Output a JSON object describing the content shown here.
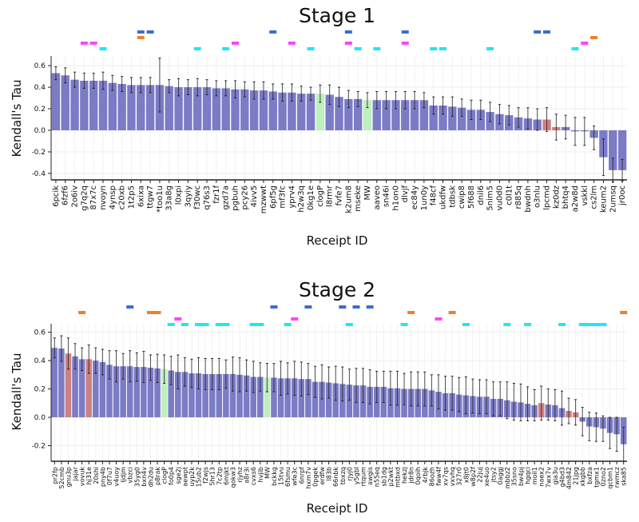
{
  "colors": {
    "bar": "#7b7bc6",
    "bar_green": "#bdf0bd",
    "bar_red": "#cd8080",
    "error": "#222222",
    "marker_rows": [
      "#3b6fc8",
      "#f07f2c",
      "#ff44ff",
      "#22e6f2"
    ]
  },
  "chart_data": [
    {
      "type": "bar",
      "title": "Stage 1",
      "xlabel": "Receipt ID",
      "ylabel": "Kendall's Tau",
      "ylim": [
        -0.46,
        0.69
      ],
      "yticks": [
        -0.4,
        -0.2,
        0.0,
        0.2,
        0.4,
        0.6
      ],
      "ytick_labels": [
        "-0.4",
        "-0.2",
        "0.0",
        "0.2",
        "0.4",
        "0.6"
      ],
      "grid": true,
      "categories": [
        "6pcik",
        "6fzf6",
        "2o6iv",
        "g7q2q",
        "87x7c",
        "nvoyn",
        "4ynsp",
        "c20xb",
        "1t2p5",
        "6xixa",
        "ttgw7",
        "*too1u",
        "33a8g",
        "l0xpi",
        "3qyiy",
        "f30wc",
        "q76s3",
        "fzr1f",
        "gzd7a",
        "pgbuh",
        "pcy26",
        "4ivv5",
        "mzwwt",
        "6pf5g",
        "mf3fc",
        "yprv4",
        "h2w3q",
        "0kg1e",
        "clogP",
        "l8rmr",
        "fvfe7",
        "k2um8",
        "mseke",
        "MW",
        "aaveo",
        "sn46i",
        "h1on0",
        "dlvjf",
        "ec84y",
        "1un0y",
        "f48cf",
        "ukdfw",
        "tdbsk",
        "cwip8",
        "5f688",
        "dnil6",
        "5nim5",
        "vu0d0",
        "c0l1t",
        "r885q",
        "bwdnh",
        "o3nlu",
        "lpcmd",
        "kz0dz",
        "bhtq4",
        "a2w8d",
        "vskkl",
        "cs2lm",
        "keum2",
        "2umsq",
        "jr0oc"
      ],
      "values": [
        0.53,
        0.51,
        0.47,
        0.46,
        0.46,
        0.46,
        0.44,
        0.43,
        0.42,
        0.42,
        0.42,
        0.42,
        0.41,
        0.4,
        0.4,
        0.4,
        0.4,
        0.39,
        0.39,
        0.38,
        0.38,
        0.37,
        0.37,
        0.36,
        0.35,
        0.35,
        0.34,
        0.34,
        0.34,
        0.33,
        0.31,
        0.29,
        0.29,
        0.28,
        0.28,
        0.28,
        0.28,
        0.28,
        0.28,
        0.28,
        0.23,
        0.23,
        0.22,
        0.21,
        0.19,
        0.19,
        0.17,
        0.15,
        0.14,
        0.12,
        0.11,
        0.1,
        0.1,
        0.03,
        0.03,
        -0.01,
        -0.01,
        -0.07,
        -0.25,
        -0.37,
        -0.37
      ],
      "errors": [
        0.06,
        0.07,
        0.07,
        0.07,
        0.07,
        0.08,
        0.07,
        0.07,
        0.07,
        0.07,
        0.07,
        0.25,
        0.06,
        0.08,
        0.07,
        0.08,
        0.07,
        0.07,
        0.07,
        0.08,
        0.07,
        0.08,
        0.08,
        0.07,
        0.08,
        0.08,
        0.07,
        0.06,
        0.08,
        0.09,
        0.09,
        0.08,
        0.07,
        0.07,
        0.08,
        0.08,
        0.08,
        0.08,
        0.08,
        0.07,
        0.08,
        0.08,
        0.09,
        0.08,
        0.09,
        0.09,
        0.09,
        0.09,
        0.09,
        0.09,
        0.1,
        0.1,
        0.11,
        0.12,
        0.11,
        0.13,
        0.13,
        0.11,
        0.17,
        0.11,
        0.1
      ],
      "highlight_green": [
        28,
        33
      ],
      "highlight_red": [
        52,
        53
      ],
      "markers": [
        [
          9,
          10,
          23,
          31,
          37,
          51,
          52
        ],
        [
          9,
          57
        ],
        [
          3,
          4,
          19,
          25,
          31,
          37,
          56
        ],
        [
          5,
          15,
          18,
          27,
          32,
          34,
          40,
          41,
          46,
          55
        ]
      ]
    },
    {
      "type": "bar",
      "title": "Stage 2",
      "xlabel": "Receipt ID",
      "ylabel": "Kendall's Tau",
      "ylim": [
        -0.31,
        0.66
      ],
      "yticks": [
        -0.2,
        0.0,
        0.2,
        0.4,
        0.6
      ],
      "ytick_labels": [
        "-0.2",
        "0.0",
        "0.2",
        "0.4",
        "0.6"
      ],
      "grid": true,
      "categories": [
        "pr2fp",
        "52cmb",
        "gnu3p",
        "jajar",
        "vovuk",
        "hj31e",
        "20shi",
        "pny4b",
        "0f7u7",
        "v4uoy",
        "ljdjm",
        "vbzci",
        "35yg0",
        "bxn4v",
        "dh2du",
        "p8rak",
        "clogP",
        "fo0p4",
        "sge2j",
        "aewpt",
        "uyp2k",
        "15ub2",
        "f2wjs",
        "5hr13",
        "7c2tp",
        "6mjkt",
        "qokw3",
        "rjyhz",
        "a8r3i",
        "cvxs6",
        "hvjib",
        "MW",
        "bckkg",
        "15tvu",
        "6fsmu",
        "wfe3c",
        "6nrpf",
        "hxm7v",
        "0pgek",
        "erdfw",
        "l83b",
        "66nbk",
        "tbxzq",
        "rjyj0",
        "y5gbl",
        "rtqum",
        "awgis",
        "n55eq",
        "sb1dg",
        "p2wkt",
        "mtbxd",
        "hekzj",
        "jdr8n",
        "0qoih",
        "4rbjk",
        "86ozh",
        "fww4f",
        "xv7qs",
        "vxvhq",
        "327r0",
        "x8jt0",
        "w8p2f",
        "22juj",
        "xe4uo",
        "jtsy2",
        "0aggj",
        "mbbz2",
        "35sno",
        "bw4pj",
        "hgqci",
        "moil1",
        "naex2",
        "7wx7v",
        "gia3u",
        "g4bd3",
        "4m842",
        "21jpg",
        "xkgbb",
        "bxfza",
        "tgmx1",
        "0zno2",
        "qcbm1",
        "rwmcz",
        "ska85"
      ],
      "values": [
        0.49,
        0.485,
        0.45,
        0.43,
        0.41,
        0.41,
        0.4,
        0.39,
        0.37,
        0.36,
        0.36,
        0.36,
        0.355,
        0.355,
        0.35,
        0.345,
        0.34,
        0.33,
        0.32,
        0.32,
        0.31,
        0.31,
        0.305,
        0.305,
        0.305,
        0.305,
        0.305,
        0.3,
        0.295,
        0.285,
        0.285,
        0.28,
        0.28,
        0.275,
        0.275,
        0.275,
        0.27,
        0.27,
        0.25,
        0.25,
        0.245,
        0.24,
        0.235,
        0.23,
        0.225,
        0.225,
        0.215,
        0.215,
        0.215,
        0.205,
        0.205,
        0.2,
        0.2,
        0.2,
        0.2,
        0.19,
        0.18,
        0.17,
        0.17,
        0.16,
        0.155,
        0.15,
        0.145,
        0.145,
        0.13,
        0.13,
        0.12,
        0.11,
        0.105,
        0.095,
        0.085,
        0.1,
        0.09,
        0.085,
        0.065,
        0.045,
        0.035,
        -0.03,
        -0.065,
        -0.07,
        -0.08,
        -0.11,
        -0.12,
        -0.19
      ],
      "errors": [
        0.07,
        0.09,
        0.11,
        0.09,
        0.08,
        0.1,
        0.09,
        0.09,
        0.1,
        0.11,
        0.09,
        0.11,
        0.1,
        0.11,
        0.09,
        0.1,
        0.1,
        0.1,
        0.12,
        0.1,
        0.1,
        0.11,
        0.11,
        0.11,
        0.11,
        0.1,
        0.12,
        0.12,
        0.11,
        0.11,
        0.1,
        0.1,
        0.1,
        0.12,
        0.11,
        0.12,
        0.12,
        0.11,
        0.11,
        0.12,
        0.11,
        0.12,
        0.12,
        0.11,
        0.12,
        0.12,
        0.12,
        0.11,
        0.11,
        0.12,
        0.12,
        0.11,
        0.12,
        0.12,
        0.12,
        0.11,
        0.12,
        0.12,
        0.12,
        0.12,
        0.13,
        0.12,
        0.12,
        0.12,
        0.12,
        0.12,
        0.13,
        0.13,
        0.13,
        0.12,
        0.11,
        0.12,
        0.11,
        0.11,
        0.12,
        0.09,
        0.09,
        0.1,
        0.1,
        0.1,
        0.09,
        0.11,
        0.12,
        0.12
      ],
      "highlight_green": [
        16,
        31
      ],
      "highlight_red": [
        2,
        5,
        71,
        75,
        76
      ],
      "markers": [
        [
          11,
          32,
          37,
          42,
          44,
          46
        ],
        [
          4,
          14,
          15,
          52,
          58,
          83
        ],
        [
          18,
          35,
          56
        ],
        [
          17,
          19,
          21,
          22,
          24,
          25,
          29,
          30,
          34,
          43,
          51,
          60,
          66,
          69,
          74,
          77,
          78,
          79,
          80
        ]
      ]
    }
  ]
}
